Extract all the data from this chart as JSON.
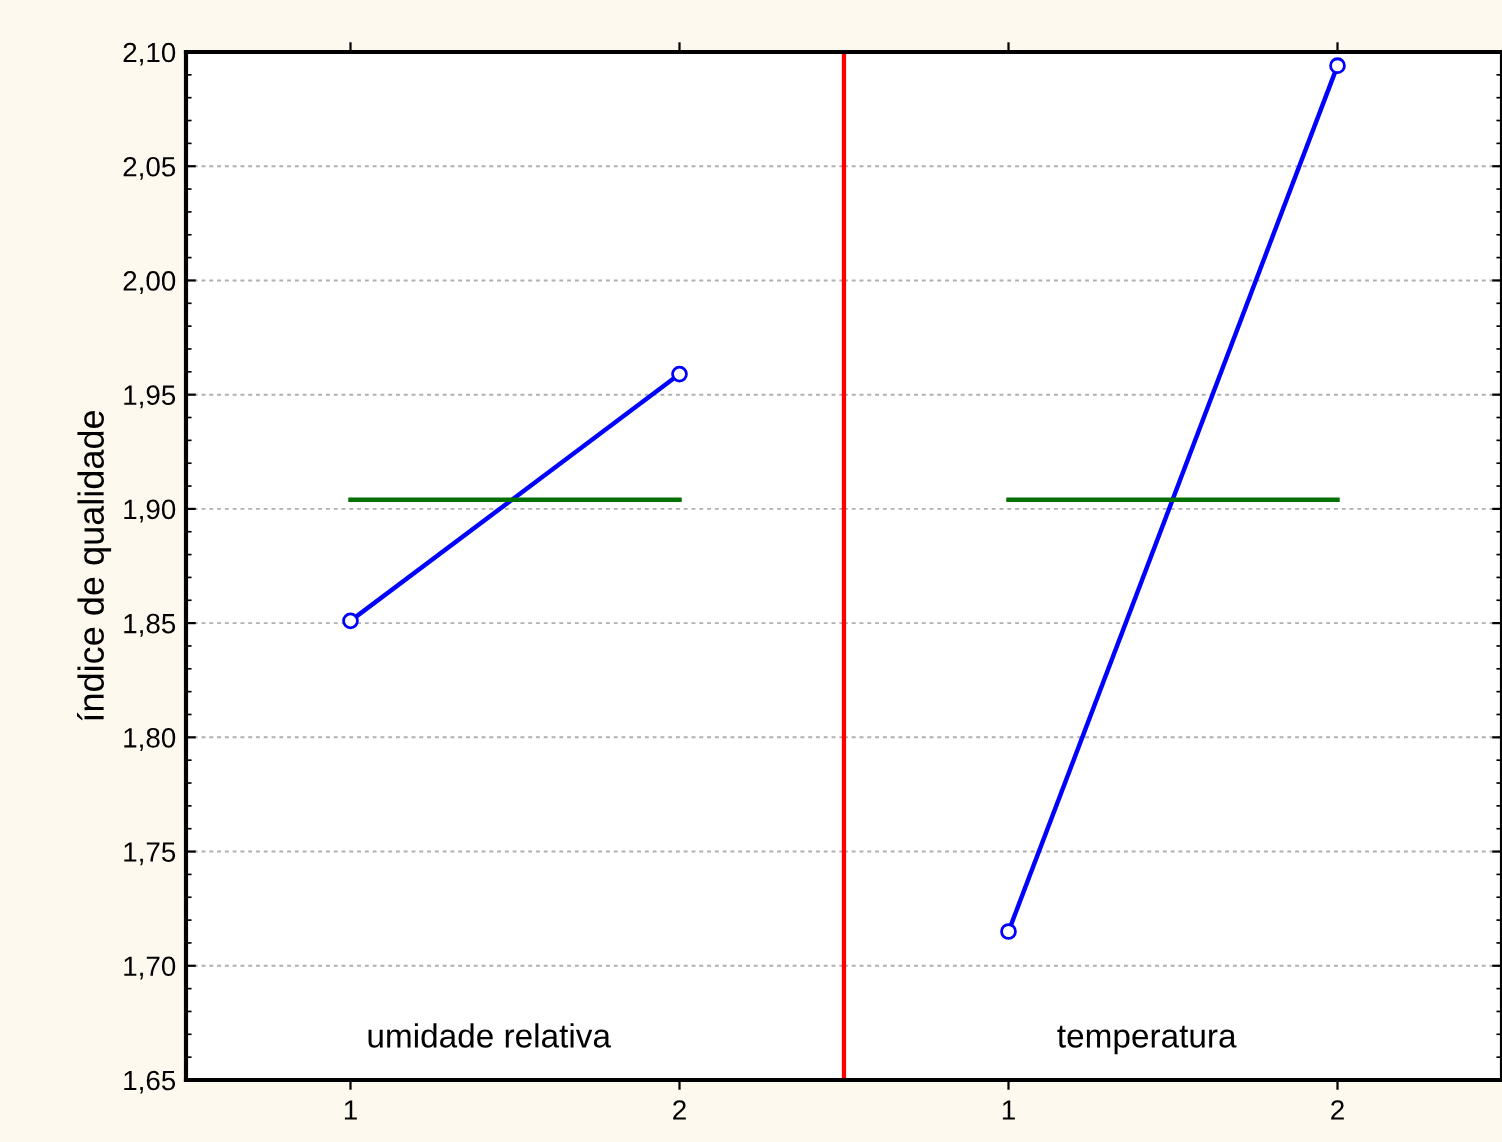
{
  "chart_data": [
    {
      "type": "line",
      "ylabel": "índice de qualidade",
      "categories": [
        "1",
        "2"
      ],
      "series": [
        {
          "color": "#0000ff",
          "values": [
            1.851,
            1.959
          ],
          "marker": "circle"
        },
        {
          "type": "line",
          "color": "#007000",
          "values": [
            1.904,
            1.904
          ],
          "marker": "none"
        }
      ],
      "ylim": [
        1.65,
        2.1
      ],
      "yticks": [
        {
          "value": 1.65,
          "label": "1,65"
        },
        {
          "value": 1.7,
          "label": "1,70"
        },
        {
          "value": 1.75,
          "label": "1,75"
        },
        {
          "value": 1.8,
          "label": "1,80"
        },
        {
          "value": 1.85,
          "label": "1,85"
        },
        {
          "value": 1.9,
          "label": "1,90"
        },
        {
          "value": 1.95,
          "label": "1,95"
        },
        {
          "value": 2.0,
          "label": "2,00"
        },
        {
          "value": 2.05,
          "label": "2,05"
        },
        {
          "value": 2.1,
          "label": "2,10"
        }
      ],
      "grid": "y",
      "annotations": [
        "umidade relativa"
      ]
    },
    {
      "type": "line",
      "categories": [
        "1",
        "2"
      ],
      "series": [
        {
          "color": "#0000ff",
          "values": [
            1.715,
            2.094
          ],
          "marker": "circle"
        },
        {
          "type": "line",
          "color": "#007000",
          "values": [
            1.904,
            1.904
          ],
          "marker": "none"
        }
      ],
      "ylim": [
        1.65,
        2.1
      ],
      "yticks": [
        {
          "value": 1.65,
          "label": null
        },
        {
          "value": 1.7,
          "label": null
        },
        {
          "value": 1.75,
          "label": null
        },
        {
          "value": 1.8,
          "label": null
        },
        {
          "value": 1.85,
          "label": null
        },
        {
          "value": 1.9,
          "label": null
        },
        {
          "value": 1.95,
          "label": null
        },
        {
          "value": 2.0,
          "label": null
        },
        {
          "value": 2.05,
          "label": null
        },
        {
          "value": 2.1,
          "label": null
        }
      ],
      "grid": "y",
      "tick_labels": "x",
      "annotations": [
        "temperatura"
      ]
    }
  ]
}
